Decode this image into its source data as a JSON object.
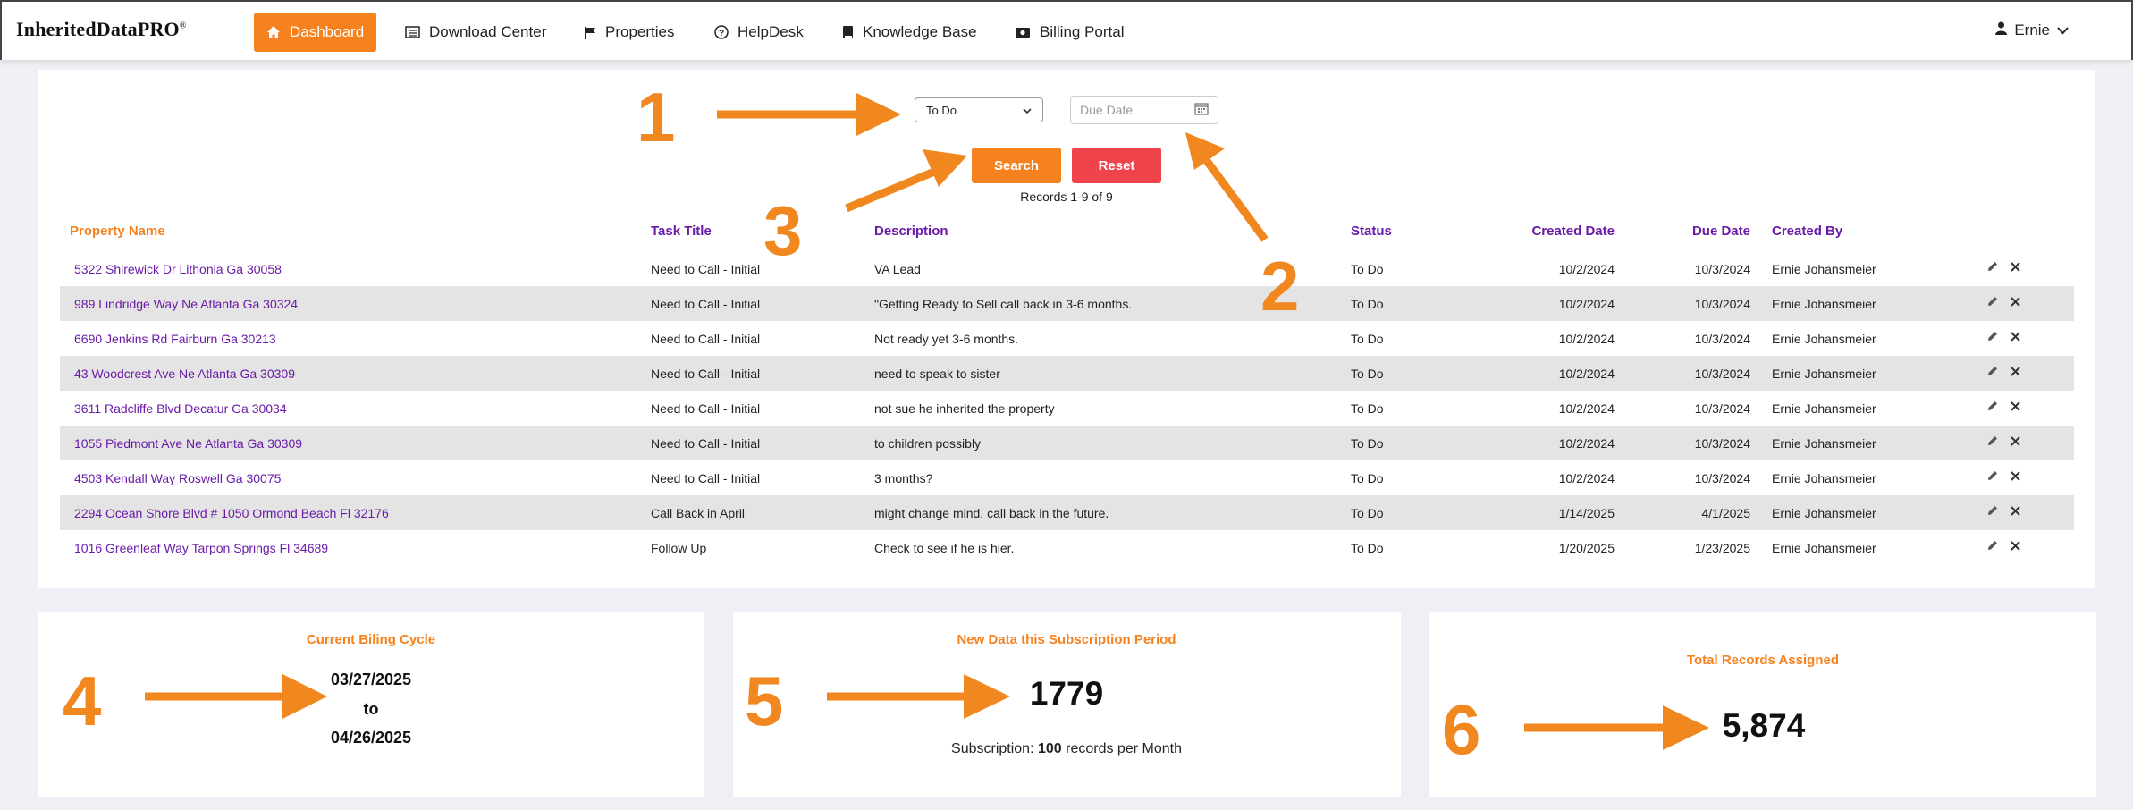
{
  "brand": {
    "name": "InheritedDataPRO",
    "mark": "®"
  },
  "nav": {
    "items": [
      {
        "label": "Dashboard",
        "icon": "home-icon"
      },
      {
        "label": "Download Center",
        "icon": "list-icon"
      },
      {
        "label": "Properties",
        "icon": "flag-icon"
      },
      {
        "label": "HelpDesk",
        "icon": "help-icon"
      },
      {
        "label": "Knowledge Base",
        "icon": "book-icon"
      },
      {
        "label": "Billing Portal",
        "icon": "money-icon"
      }
    ],
    "user": "Ernie"
  },
  "filters": {
    "status_value": "To Do",
    "due_placeholder": "Due Date",
    "search_label": "Search",
    "reset_label": "Reset",
    "records_text": "Records 1-9 of 9"
  },
  "table": {
    "headers": [
      "Property Name",
      "Task Title",
      "Description",
      "Status",
      "Created Date",
      "Due Date",
      "Created By"
    ],
    "rows": [
      [
        "5322 Shirewick Dr Lithonia Ga 30058",
        "Need to Call - Initial",
        "VA Lead",
        "To Do",
        "10/2/2024",
        "10/3/2024",
        "Ernie Johansmeier"
      ],
      [
        "989 Lindridge Way Ne Atlanta Ga 30324",
        "Need to Call - Initial",
        "\"Getting Ready to Sell call back in 3-6 months.",
        "To Do",
        "10/2/2024",
        "10/3/2024",
        "Ernie Johansmeier"
      ],
      [
        "6690 Jenkins Rd Fairburn Ga 30213",
        "Need to Call - Initial",
        "Not ready yet 3-6 months.",
        "To Do",
        "10/2/2024",
        "10/3/2024",
        "Ernie Johansmeier"
      ],
      [
        "43 Woodcrest Ave Ne Atlanta Ga 30309",
        "Need to Call - Initial",
        "need to speak to sister",
        "To Do",
        "10/2/2024",
        "10/3/2024",
        "Ernie Johansmeier"
      ],
      [
        "3611 Radcliffe Blvd Decatur Ga 30034",
        "Need to Call - Initial",
        "not sue he inherited the property",
        "To Do",
        "10/2/2024",
        "10/3/2024",
        "Ernie Johansmeier"
      ],
      [
        "1055 Piedmont Ave Ne Atlanta Ga 30309",
        "Need to Call - Initial",
        "to children possibly",
        "To Do",
        "10/2/2024",
        "10/3/2024",
        "Ernie Johansmeier"
      ],
      [
        "4503 Kendall Way Roswell Ga 30075",
        "Need to Call - Initial",
        "3 months?",
        "To Do",
        "10/2/2024",
        "10/3/2024",
        "Ernie Johansmeier"
      ],
      [
        "2294 Ocean Shore Blvd # 1050 Ormond Beach Fl 32176",
        "Call Back in April",
        "might change mind, call back in the future.",
        "To Do",
        "1/14/2025",
        "4/1/2025",
        "Ernie Johansmeier"
      ],
      [
        "1016 Greenleaf Way Tarpon Springs Fl 34689",
        "Follow Up",
        "Check to see if he is hier.",
        "To Do",
        "1/20/2025",
        "1/23/2025",
        "Ernie Johansmeier"
      ]
    ]
  },
  "cards": {
    "billing": {
      "title": "Current Biling Cycle",
      "start": "03/27/2025",
      "to": "to",
      "end": "04/26/2025"
    },
    "new_data": {
      "title": "New Data this Subscription Period",
      "value": "1779",
      "sub_prefix": "Subscription:",
      "sub_count": "100",
      "sub_suffix": "records per Month"
    },
    "total": {
      "title": "Total Records Assigned",
      "value": "5,874"
    }
  },
  "annotations": [
    "1",
    "2",
    "3",
    "4",
    "5",
    "6"
  ],
  "colors": {
    "accent": "#f5821f",
    "danger": "#f0444d",
    "link": "#6a1aa8",
    "annotation": "#f0871f"
  }
}
